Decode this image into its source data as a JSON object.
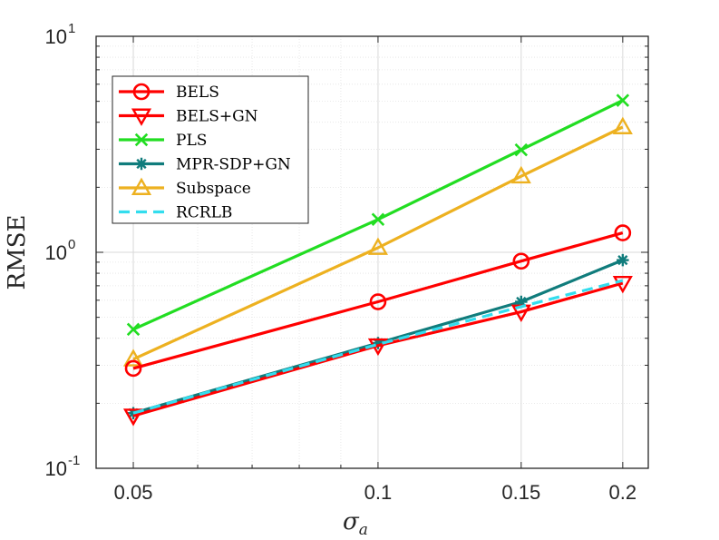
{
  "chart_data": {
    "type": "line",
    "title": "",
    "xlabel_base": "σ",
    "xlabel_sub": "a",
    "ylabel": "RMSE",
    "xscale": "log",
    "yscale": "log",
    "xlim": [
      0.045,
      0.215
    ],
    "ylim": [
      0.1,
      10
    ],
    "grid": true,
    "legend_position": "top-left",
    "x_ticks": [
      {
        "value": 0.05,
        "label": "0.05"
      },
      {
        "value": 0.1,
        "label": "0.1"
      },
      {
        "value": 0.15,
        "label": "0.15"
      },
      {
        "value": 0.2,
        "label": "0.2"
      }
    ],
    "y_ticks": [
      {
        "value": 0.1,
        "base": "10",
        "exp": "-1"
      },
      {
        "value": 1,
        "base": "10",
        "exp": "0"
      },
      {
        "value": 10,
        "base": "10",
        "exp": "1"
      }
    ],
    "x": [
      0.05,
      0.1,
      0.15,
      0.2
    ],
    "series": [
      {
        "name": "BELS",
        "color": "#ff0000",
        "marker": "circle",
        "dash": false,
        "values": [
          0.29,
          0.59,
          0.91,
          1.23
        ]
      },
      {
        "name": "BELS+GN",
        "color": "#ff0000",
        "marker": "triangle-down",
        "dash": false,
        "values": [
          0.175,
          0.37,
          0.53,
          0.72
        ]
      },
      {
        "name": "PLS",
        "color": "#22dd22",
        "marker": "x",
        "dash": false,
        "values": [
          0.44,
          1.42,
          2.98,
          5.05
        ]
      },
      {
        "name": "MPR-SDP+GN",
        "color": "#107c7c",
        "marker": "asterisk",
        "dash": false,
        "values": [
          0.18,
          0.38,
          0.59,
          0.92
        ]
      },
      {
        "name": "Subspace",
        "color": "#edb120",
        "marker": "triangle-up",
        "dash": false,
        "values": [
          0.32,
          1.05,
          2.25,
          3.8
        ]
      },
      {
        "name": "RCRLB",
        "color": "#33ddee",
        "marker": "none",
        "dash": true,
        "values": [
          0.18,
          0.375,
          0.56,
          0.74
        ]
      }
    ]
  }
}
